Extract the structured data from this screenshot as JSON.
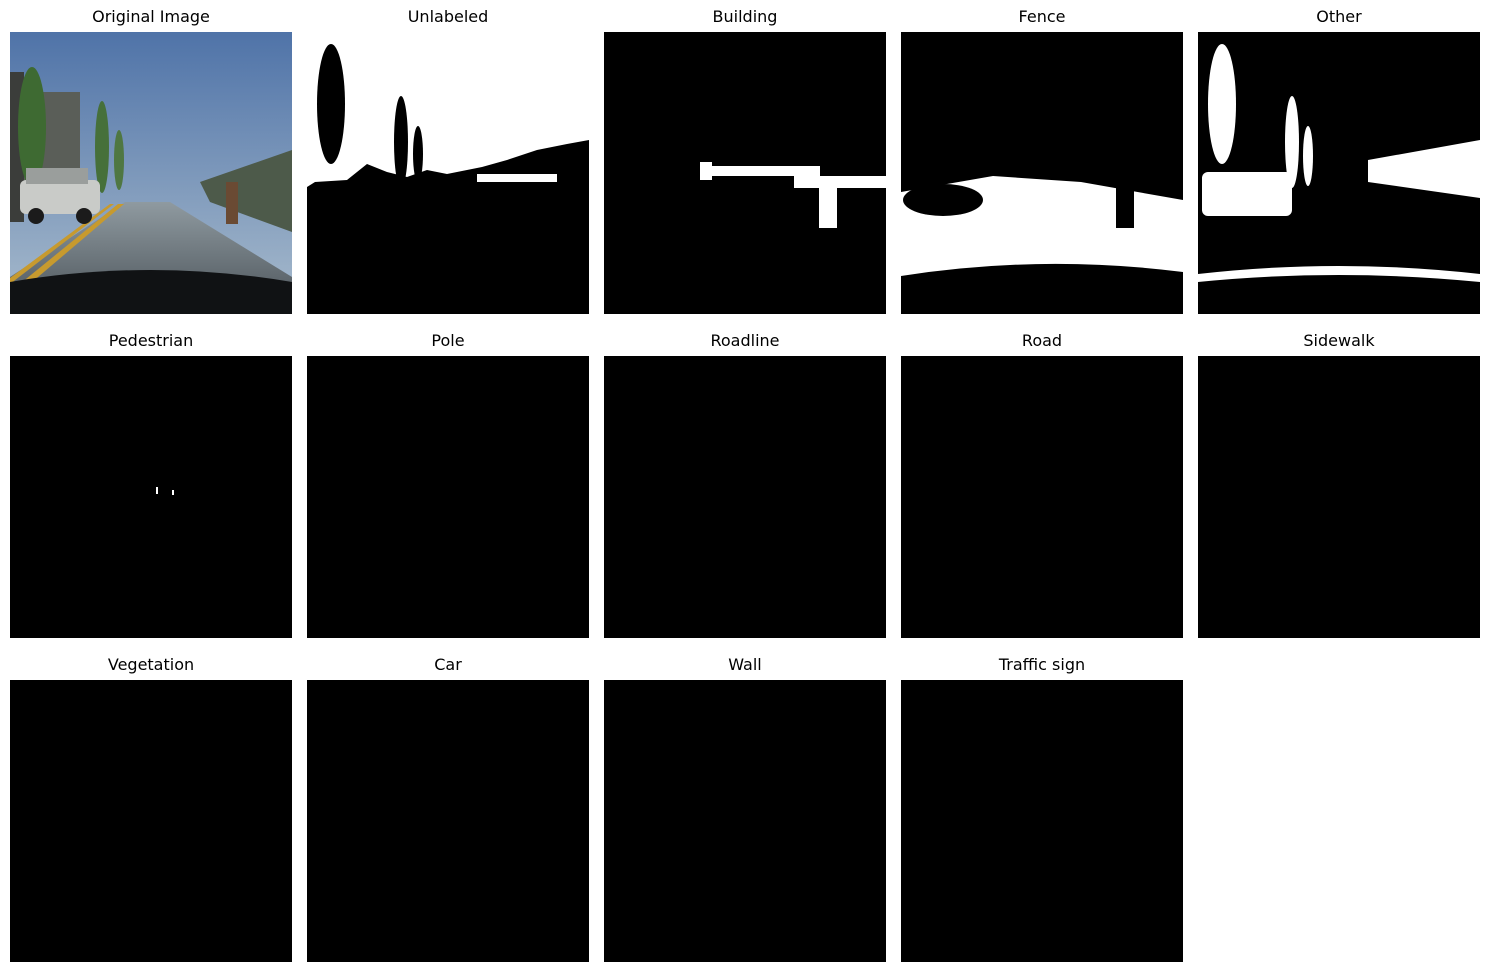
{
  "figure": {
    "panels": [
      {
        "title": "Original Image",
        "kind": "photo"
      },
      {
        "title": "Unlabeled",
        "kind": "mask",
        "mask": "unlabeled"
      },
      {
        "title": "Building",
        "kind": "mask",
        "mask": "building"
      },
      {
        "title": "Fence",
        "kind": "mask",
        "mask": "fence"
      },
      {
        "title": "Other",
        "kind": "mask",
        "mask": "other"
      },
      {
        "title": "Pedestrian",
        "kind": "mask",
        "mask": "pedestrian"
      },
      {
        "title": "Pole",
        "kind": "mask",
        "mask": "empty"
      },
      {
        "title": "Roadline",
        "kind": "mask",
        "mask": "empty"
      },
      {
        "title": "Road",
        "kind": "mask",
        "mask": "empty"
      },
      {
        "title": "Sidewalk",
        "kind": "mask",
        "mask": "empty"
      },
      {
        "title": "Vegetation",
        "kind": "mask",
        "mask": "empty"
      },
      {
        "title": "Car",
        "kind": "mask",
        "mask": "empty"
      },
      {
        "title": "Wall",
        "kind": "mask",
        "mask": "empty"
      },
      {
        "title": "Traffic sign",
        "kind": "mask",
        "mask": "empty"
      }
    ]
  },
  "colors": {
    "mask_foreground": "#ffffff",
    "mask_background": "#000000",
    "sky": "#5f86b8",
    "road": "#5c6670"
  }
}
